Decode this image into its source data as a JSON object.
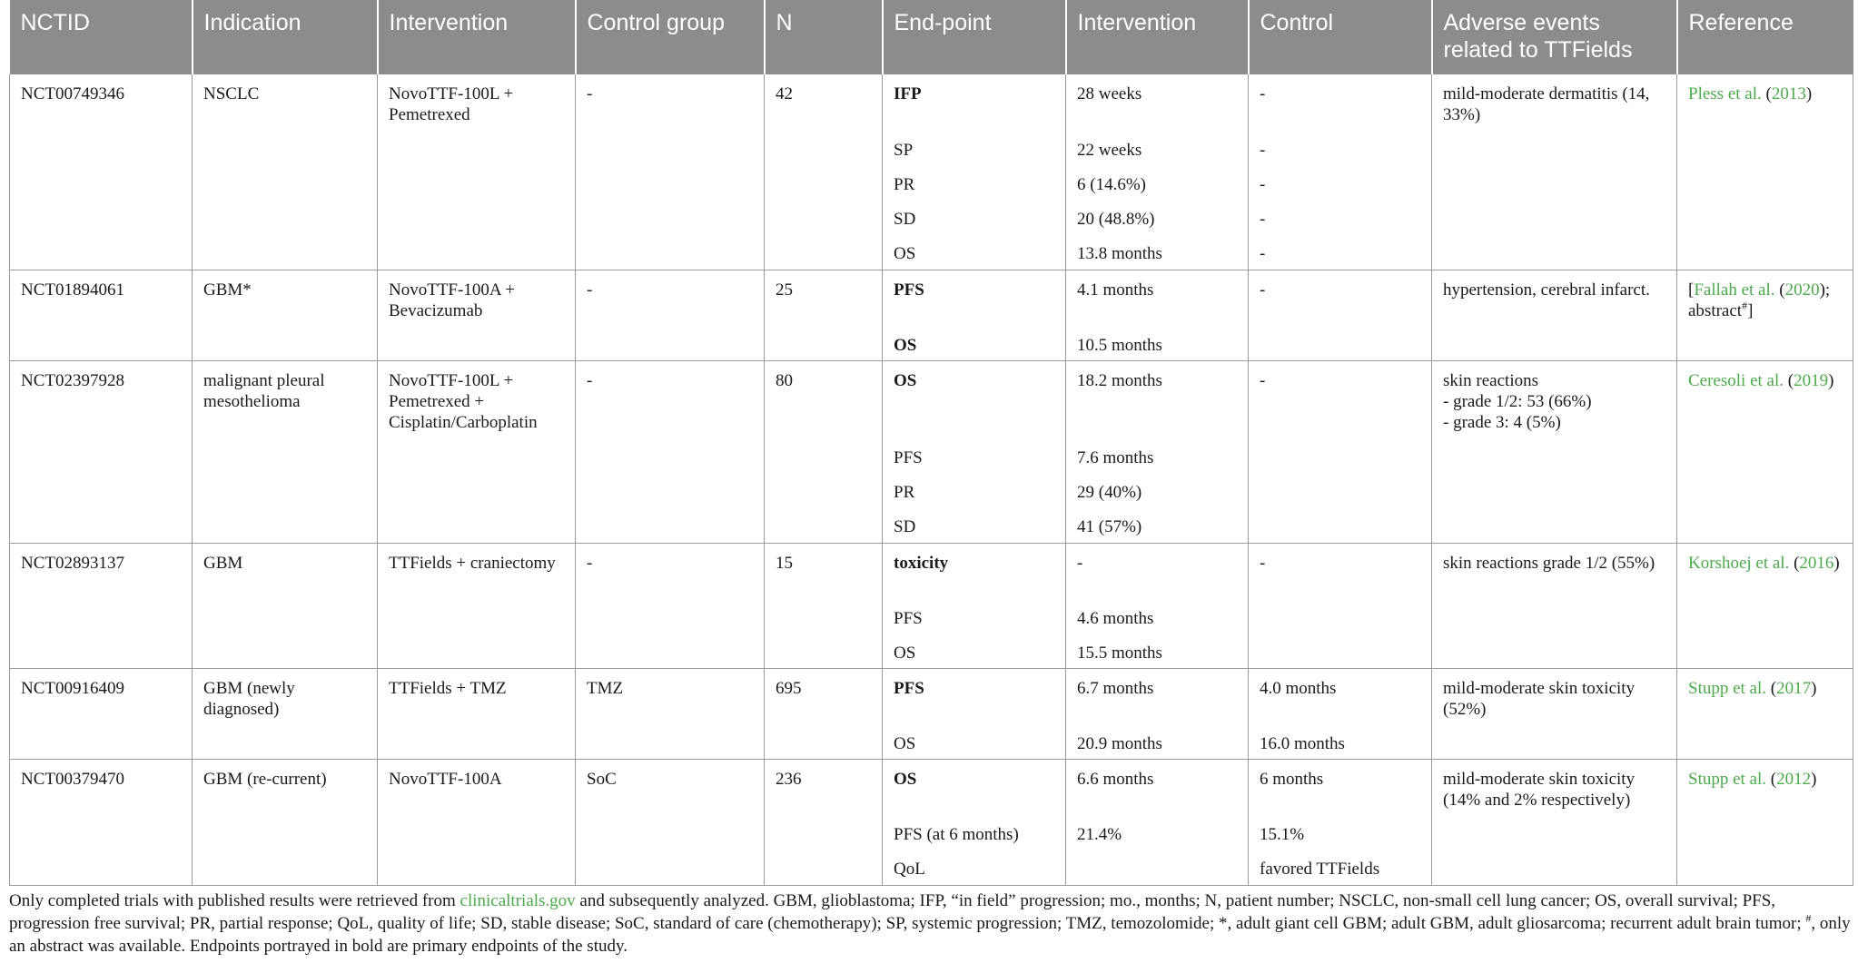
{
  "headers": [
    "NCTID",
    "Indication",
    "Intervention",
    "Control group",
    "N",
    "End-point",
    "Intervention",
    "Control",
    "Adverse events related to TTFields",
    "Reference"
  ],
  "rows": [
    {
      "nctid": "NCT00749346",
      "indication": "NSCLC",
      "intervention": "NovoTTF-100L + Pemetrexed",
      "control_group": "-",
      "n": "42",
      "endpoints": [
        {
          "name": "IFP",
          "primary": true,
          "intervention": "28 weeks",
          "control": "-"
        },
        {
          "name": "SP",
          "primary": false,
          "intervention": "22 weeks",
          "control": "-"
        },
        {
          "name": "PR",
          "primary": false,
          "intervention": "6 (14.6%)",
          "control": "-"
        },
        {
          "name": "SD",
          "primary": false,
          "intervention": "20 (48.8%)",
          "control": "-"
        },
        {
          "name": "OS",
          "primary": false,
          "intervention": "13.8 months",
          "control": "-"
        }
      ],
      "adverse_events": "mild-moderate dermatitis (14, 33%)",
      "reference": {
        "author": "Pless et al.",
        "year": "2013"
      }
    },
    {
      "nctid": "NCT01894061",
      "indication": "GBM*",
      "intervention": "NovoTTF-100A + Bevacizumab",
      "control_group": "-",
      "n": "25",
      "endpoints": [
        {
          "name": "PFS",
          "primary": true,
          "intervention": "4.1 months",
          "control": "-"
        },
        {
          "name": "OS",
          "primary": true,
          "intervention": "10.5 months",
          "control": ""
        }
      ],
      "adverse_events": "hypertension, cerebral infarct.",
      "reference": {
        "author": "Fallah et al.",
        "year": "2020",
        "extra": "abstract"
      }
    },
    {
      "nctid": "NCT02397928",
      "indication": "malignant pleural mesothelioma",
      "intervention": "NovoTTF-100L + Pemetrexed + Cisplatin/Carboplatin",
      "control_group": "-",
      "n": "80",
      "endpoints": [
        {
          "name": "OS",
          "primary": true,
          "intervention": "18.2 months",
          "control": "-"
        },
        {
          "name": "PFS",
          "primary": false,
          "intervention": "7.6 months",
          "control": ""
        },
        {
          "name": "PR",
          "primary": false,
          "intervention": "29 (40%)",
          "control": ""
        },
        {
          "name": "SD",
          "primary": false,
          "intervention": "41 (57%)",
          "control": ""
        }
      ],
      "adverse_events_lines": [
        "skin reactions",
        "- grade 1/2: 53 (66%)",
        "- grade 3: 4 (5%)"
      ],
      "reference": {
        "author": "Ceresoli et al.",
        "year": "2019"
      }
    },
    {
      "nctid": "NCT02893137",
      "indication": "GBM",
      "intervention": "TTFields + craniectomy",
      "control_group": "-",
      "n": "15",
      "endpoints": [
        {
          "name": "toxicity",
          "primary": true,
          "intervention": "-",
          "control": "-"
        },
        {
          "name": "PFS",
          "primary": false,
          "intervention": "4.6 months",
          "control": ""
        },
        {
          "name": "OS",
          "primary": false,
          "intervention": "15.5 months",
          "control": ""
        }
      ],
      "adverse_events": "skin reactions grade 1/2 (55%)",
      "reference": {
        "author": "Korshoej et al.",
        "year": "2016"
      }
    },
    {
      "nctid": "NCT00916409",
      "indication": "GBM (newly diagnosed)",
      "intervention": "TTFields + TMZ",
      "control_group": "TMZ",
      "n": "695",
      "endpoints": [
        {
          "name": "PFS",
          "primary": true,
          "intervention": "6.7 months",
          "control": "4.0 months"
        },
        {
          "name": "OS",
          "primary": false,
          "intervention": "20.9 months",
          "control": "16.0 months"
        }
      ],
      "adverse_events": "mild-moderate skin toxicity (52%)",
      "reference": {
        "author": "Stupp et al.",
        "year": "2017"
      }
    },
    {
      "nctid": "NCT00379470",
      "indication": "GBM (re-current)",
      "intervention": "NovoTTF-100A",
      "control_group": "SoC",
      "n": "236",
      "endpoints": [
        {
          "name": "OS",
          "primary": true,
          "intervention": "6.6 months",
          "control": "6 months"
        },
        {
          "name": "PFS (at 6 months)",
          "primary": false,
          "intervention": "21.4%",
          "control": "15.1%"
        },
        {
          "name": "QoL",
          "primary": false,
          "intervention": "",
          "control": "favored TTFields"
        }
      ],
      "adverse_events": "mild-moderate skin toxicity (14% and 2% respectively)",
      "reference": {
        "author": "Stupp et al.",
        "year": "2012"
      }
    }
  ],
  "footnote": {
    "before_link": "Only completed trials with published results were retrieved from ",
    "link": "clinicaltrials.gov",
    "after_link": " and subsequently analyzed. GBM, glioblastoma; IFP, “in field” progression; mo., months; N, patient number; NSCLC, non-small cell lung cancer; OS, overall survival; PFS, progression free survival; PR, partial response; QoL, quality of life; SD, stable disease; SoC, standard of care (chemotherapy); SP, systemic progression; TMZ, temozolomide; *, adult giant cell GBM; adult GBM, adult gliosarcoma; recurrent adult brain tumor; ",
    "symbol": "#",
    "end": ", only an abstract was available. Endpoints portrayed in bold are primary endpoints of the study."
  }
}
